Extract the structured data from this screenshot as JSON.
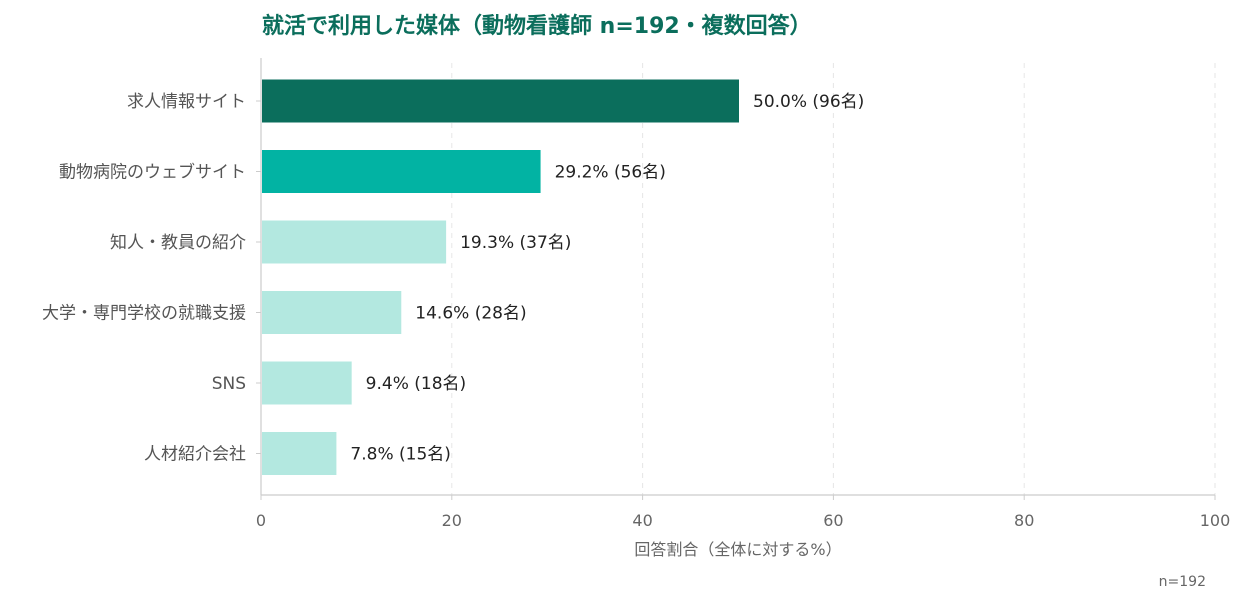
{
  "chart_data": {
    "type": "bar",
    "orientation": "horizontal",
    "title": "就活で利用した媒体（動物看護師 n=192・複数回答）",
    "xlabel": "回答割合（全体に対する%）",
    "ylabel": "",
    "xlim": [
      0,
      100
    ],
    "xticks": [
      0,
      20,
      40,
      60,
      80,
      100
    ],
    "grid": "vertical dashed",
    "categories": [
      "求人情報サイト",
      "動物病院のウェブサイト",
      "知人・教員の紹介",
      "大学・専門学校の就職支援",
      "SNS",
      "人材紹介会社"
    ],
    "values": [
      50.0,
      29.2,
      19.3,
      14.6,
      9.4,
      7.8
    ],
    "counts": [
      96,
      56,
      37,
      28,
      18,
      15
    ],
    "data_labels": [
      "50.0% (96名)",
      "29.2% (56名)",
      "19.3% (37名)",
      "14.6% (28名)",
      "9.4% (18名)",
      "7.8% (15名)"
    ],
    "colors": [
      "#0b6e5c",
      "#02b3a3",
      "#b3e8e0",
      "#b3e8e0",
      "#b3e8e0",
      "#b3e8e0"
    ]
  },
  "footnote": "n=192"
}
